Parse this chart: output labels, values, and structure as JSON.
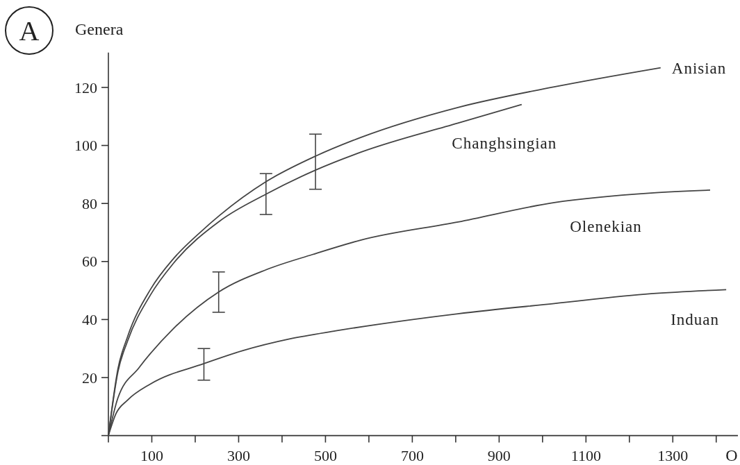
{
  "chart_data": {
    "type": "line",
    "ylabel": "Genera",
    "xlabel": "O",
    "annotations": [
      "A"
    ],
    "xlim": [
      0,
      1450
    ],
    "ylim": [
      0,
      132
    ],
    "xticks": [
      {
        "value": 0,
        "label": null
      },
      100,
      {
        "value": 200,
        "label": null
      },
      300,
      {
        "value": 400,
        "label": null
      },
      500,
      {
        "value": 600,
        "label": null
      },
      700,
      {
        "value": 800,
        "label": null
      },
      900,
      {
        "value": 1000,
        "label": null
      },
      1100,
      {
        "value": 1200,
        "label": null
      },
      1300,
      {
        "value": 1400,
        "label": null
      }
    ],
    "yticks": [
      {
        "value": 0,
        "label": null
      },
      20,
      40,
      60,
      80,
      100,
      120
    ],
    "marker": "none",
    "line_style": "solid",
    "series": [
      {
        "name": "Anisian",
        "color": "#444444",
        "x": [
          0,
          22,
          44,
          97,
          150,
          214,
          257,
          363,
          477,
          582,
          805,
          1027,
          1272
        ],
        "values": [
          0,
          23,
          34,
          50.4,
          61,
          70.4,
          76,
          87.5,
          96.3,
          102.8,
          113.1,
          120.2,
          126.8
        ],
        "errors": [
          null,
          null,
          null,
          null,
          null,
          null,
          null,
          null,
          [
            84.9,
            103.9
          ],
          null,
          null,
          null,
          null
        ]
      },
      {
        "name": "Changhsingian",
        "color": "#444444",
        "x": [
          0,
          22,
          44,
          97,
          150,
          257,
          363,
          477,
          582,
          805,
          952
        ],
        "values": [
          0,
          22,
          32.5,
          48.5,
          59.4,
          74,
          83.2,
          91.5,
          97.7,
          107.7,
          114.1
        ],
        "errors": [
          null,
          null,
          null,
          null,
          null,
          null,
          [
            76.2,
            90.3
          ],
          null,
          null,
          null,
          null
        ]
      },
      {
        "name": "Olenekian",
        "color": "#444444",
        "x": [
          0,
          22,
          70,
          150,
          254,
          364,
          470,
          582,
          805,
          1027,
          1250,
          1386
        ],
        "values": [
          0,
          13,
          23.3,
          36.9,
          49.5,
          57.2,
          62.4,
          67.4,
          73.6,
          80.3,
          83.6,
          84.6
        ],
        "errors": [
          null,
          null,
          null,
          null,
          [
            42.5,
            56.4
          ],
          null,
          null,
          null,
          null,
          null,
          null,
          null
        ]
      },
      {
        "name": "Induan",
        "color": "#444444",
        "x": [
          0,
          17,
          44,
          97,
          220,
          310,
          417,
          524,
          805,
          1027,
          1250,
          1423
        ],
        "values": [
          0,
          7.4,
          12.2,
          17.8,
          24.8,
          29.3,
          33.3,
          36.1,
          42,
          45.5,
          48.9,
          50.3
        ],
        "errors": [
          null,
          null,
          null,
          null,
          [
            19.1,
            30
          ],
          null,
          null,
          null,
          null,
          null,
          null,
          null
        ]
      }
    ]
  }
}
